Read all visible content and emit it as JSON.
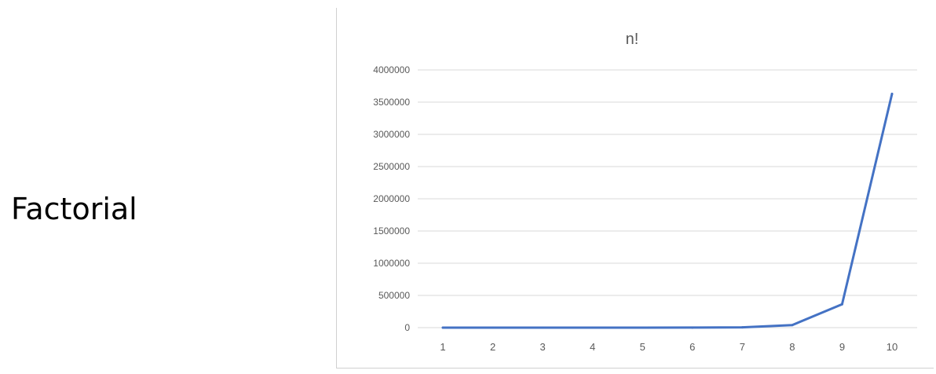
{
  "slide": {
    "label": "Factorial"
  },
  "chart_data": {
    "type": "line",
    "title": "n!",
    "xlabel": "",
    "ylabel": "",
    "categories": [
      "1",
      "2",
      "3",
      "4",
      "5",
      "6",
      "7",
      "8",
      "9",
      "10"
    ],
    "values": [
      1,
      2,
      6,
      24,
      120,
      720,
      5040,
      40320,
      362880,
      3628800
    ],
    "ylim": [
      0,
      4000000
    ],
    "yticks": [
      0,
      500000,
      1000000,
      1500000,
      2000000,
      2500000,
      3000000,
      3500000,
      4000000
    ],
    "grid": true,
    "legend": "none",
    "colors": {
      "line": "#4472c4",
      "grid": "#d9d9d9",
      "text": "#595959",
      "title": "#595959"
    }
  }
}
